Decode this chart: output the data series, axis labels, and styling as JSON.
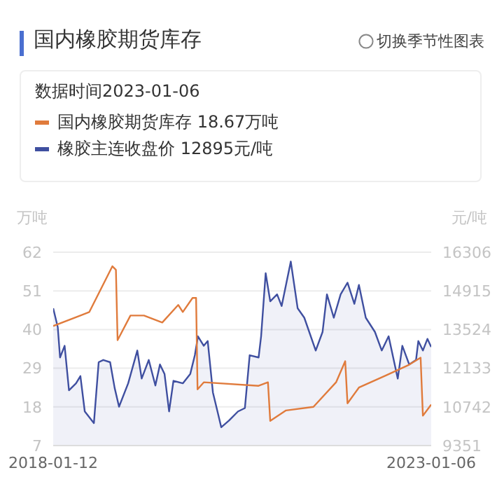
{
  "chart_data": {
    "type": "line",
    "title": "国内橡胶期货库存",
    "ylabel": "万吨",
    "y2label": "元/吨",
    "annotations": [
      "数据时间2023-01-06",
      "18.67万吨",
      "12895元/吨",
      "切换季节性图表"
    ],
    "xlim": [
      "2018-01-12",
      "2023-01-06"
    ],
    "xticks": [
      {
        "value": "2018-01-12",
        "label": "2018-01-12"
      },
      {
        "value": "2023-01-06",
        "label": "2023-01-06"
      }
    ],
    "ylim": [
      7,
      62
    ],
    "yticks": [
      7,
      18,
      29,
      40,
      51,
      62
    ],
    "y2lim": [
      9351,
      16306
    ],
    "y2ticks": [
      9351,
      10742,
      12133,
      13524,
      14915,
      16306
    ],
    "grid": "y",
    "legend": "top",
    "marker": "none",
    "series": [
      {
        "name": "国内橡胶期货库存",
        "color": "#e07b3c",
        "x": [
          "2018-01-12",
          "2018-05-23",
          "2018-07-05",
          "2018-10-24",
          "2018-11-10",
          "2018-11-18",
          "2019-01-19",
          "2019-03-25",
          "2019-06-21",
          "2019-09-06",
          "2019-09-28",
          "2019-11-14",
          "2019-12-01",
          "2019-12-08",
          "2020-01-07",
          "2020-09-27",
          "2020-11-11",
          "2020-11-22",
          "2021-02-06",
          "2021-06-18",
          "2021-10-05",
          "2021-11-18",
          "2021-11-29",
          "2022-01-23",
          "2022-06-04",
          "2022-09-22",
          "2022-11-16",
          "2022-11-27",
          "2023-01-06"
        ],
        "values": [
          41,
          44,
          45,
          58,
          57,
          37,
          44,
          44,
          42,
          47,
          45,
          49,
          49,
          23,
          25,
          24,
          25,
          14,
          17,
          18,
          25,
          31,
          19,
          23.5,
          27,
          30,
          32,
          15.5,
          18.67
        ]
      },
      {
        "name": "橡胶主连收盘价",
        "type": "area",
        "axis": "y2",
        "color": "#3f4fa0",
        "x": [
          "2018-01-12",
          "2018-02-03",
          "2018-02-14",
          "2018-03-08",
          "2018-03-29",
          "2018-05-02",
          "2018-05-23",
          "2018-06-13",
          "2018-07-27",
          "2018-08-19",
          "2018-09-10",
          "2018-10-13",
          "2018-11-04",
          "2018-11-25",
          "2019-01-08",
          "2019-02-21",
          "2019-03-14",
          "2019-04-17",
          "2019-05-19",
          "2019-06-10",
          "2019-07-02",
          "2019-07-24",
          "2019-08-14",
          "2019-09-28",
          "2019-11-03",
          "2019-11-25",
          "2019-12-10",
          "2020-01-07",
          "2020-01-26",
          "2020-02-20",
          "2020-03-13",
          "2020-03-31",
          "2020-05-07",
          "2020-06-20",
          "2020-07-23",
          "2020-08-15",
          "2020-09-27",
          "2020-10-09",
          "2020-10-31",
          "2020-11-22",
          "2020-12-25",
          "2021-01-16",
          "2021-03-01",
          "2021-04-03",
          "2021-05-05",
          "2021-06-29",
          "2021-08-01",
          "2021-08-22",
          "2021-09-24",
          "2021-10-27",
          "2021-11-29",
          "2022-01-01",
          "2022-01-23",
          "2022-02-25",
          "2022-04-10",
          "2022-05-13",
          "2022-06-15",
          "2022-07-29",
          "2022-08-20",
          "2022-09-22",
          "2022-10-25",
          "2022-11-05",
          "2022-11-27",
          "2022-12-19",
          "2023-01-06"
        ],
        "values": [
          14290,
          13610,
          12520,
          12940,
          11340,
          11590,
          11850,
          10580,
          10160,
          12350,
          12430,
          12350,
          11420,
          10750,
          11590,
          12770,
          11760,
          12430,
          11510,
          12270,
          11930,
          10580,
          11680,
          11590,
          11930,
          12600,
          13280,
          12940,
          13110,
          11260,
          10580,
          10010,
          10250,
          10580,
          10700,
          12600,
          12520,
          13280,
          15550,
          14540,
          14790,
          14370,
          15970,
          14290,
          13950,
          12770,
          13440,
          14790,
          13950,
          14790,
          15210,
          14450,
          15130,
          13950,
          13440,
          12770,
          13280,
          11760,
          12940,
          12270,
          12430,
          13110,
          12770,
          13190,
          12895
        ]
      }
    ]
  }
}
